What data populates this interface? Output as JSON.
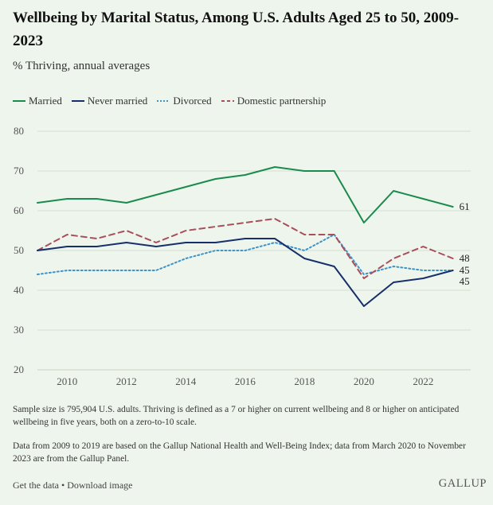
{
  "title": "Wellbeing by Marital Status, Among U.S. Adults Aged 25 to 50, 2009-2023",
  "subtitle": "% Thriving, annual averages",
  "notes": {
    "sample": "Sample size is 795,904 U.S. adults. Thriving is defined as a 7 or higher on current wellbeing and 8 or higher on anticipated wellbeing in five years, both on a zero-to-10 scale.",
    "source": "Data from 2009 to 2019 are based on the Gallup National Health and Well-Being Index; data from March 2020 to November 2023 are from the Gallup Panel."
  },
  "footer": {
    "get_data": "Get the data",
    "separator": " • ",
    "download": "Download image"
  },
  "logo": "GALLUP",
  "chart_data": {
    "type": "line",
    "title": "Wellbeing by Marital Status, Among U.S. Adults Aged 25 to 50, 2009-2023",
    "subtitle": "% Thriving, annual averages",
    "xlabel": "",
    "ylabel": "",
    "x": [
      2009,
      2010,
      2011,
      2012,
      2013,
      2014,
      2015,
      2016,
      2017,
      2018,
      2019,
      2020,
      2021,
      2022,
      2023
    ],
    "xlim": [
      2009,
      2023.6
    ],
    "ylim": [
      20,
      80
    ],
    "yticks": [
      20,
      30,
      40,
      50,
      60,
      70,
      80
    ],
    "xticks": [
      2010,
      2012,
      2014,
      2016,
      2018,
      2020,
      2022
    ],
    "grid": true,
    "legend_position": "top-left",
    "series": [
      {
        "name": "Married",
        "color": "#1b8a4e",
        "dash": "solid",
        "values": [
          62,
          63,
          63,
          62,
          64,
          66,
          68,
          69,
          71,
          70,
          70,
          57,
          65,
          63,
          61
        ],
        "end_label": "61"
      },
      {
        "name": "Never married",
        "color": "#17306b",
        "dash": "solid",
        "values": [
          50,
          51,
          51,
          52,
          51,
          52,
          52,
          53,
          53,
          48,
          46,
          36,
          42,
          43,
          45
        ],
        "end_label": "45"
      },
      {
        "name": "Divorced",
        "color": "#3e93c9",
        "dash": "dotted",
        "values": [
          44,
          45,
          45,
          45,
          45,
          48,
          50,
          50,
          52,
          50,
          54,
          44,
          46,
          45,
          45
        ],
        "end_label": "45"
      },
      {
        "name": "Domestic partnership",
        "color": "#a94f5c",
        "dash": "dashed",
        "values": [
          50,
          54,
          53,
          55,
          52,
          55,
          56,
          57,
          58,
          54,
          54,
          43,
          48,
          51,
          48
        ],
        "end_label": "48"
      }
    ]
  }
}
